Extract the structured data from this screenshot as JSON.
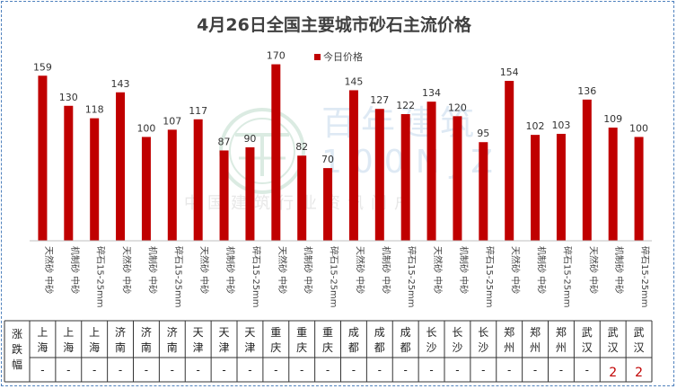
{
  "chart_data": {
    "type": "bar",
    "title": "4月26日全国主要城市砂石主流价格",
    "legend": {
      "entries": [
        "今日价格"
      ],
      "position": "top-right"
    },
    "series": [
      {
        "name": "今日价格",
        "color": "#c00000",
        "values": [
          159,
          130,
          118,
          143,
          100,
          107,
          117,
          87,
          90,
          170,
          82,
          70,
          145,
          127,
          122,
          134,
          120,
          95,
          154,
          102,
          103,
          136,
          109,
          100
        ]
      }
    ],
    "categories": [
      "天然砂 中砂",
      "机制砂 中砂",
      "碎石15-25mm",
      "天然砂 中砂",
      "机制砂 中砂",
      "碎石15-25mm",
      "天然砂 中砂",
      "机制砂 中砂",
      "碎石15-25mm",
      "天然砂 中砂",
      "机制砂 中砂",
      "碎石15-25mm",
      "天然砂 中砂",
      "机制砂 中砂",
      "碎石15-25mm",
      "天然砂 中砂",
      "机制砂 中砂",
      "碎石15-25mm",
      "天然砂 中砂",
      "机制砂 中砂",
      "碎石15-25mm",
      "天然砂 中砂",
      "机制砂 中砂",
      "碎石15-25mm"
    ],
    "ylim": [
      0,
      180
    ],
    "grid": false
  },
  "table": {
    "row_label": "涨跌幅",
    "cities": [
      "上海",
      "上海",
      "上海",
      "济南",
      "济南",
      "济南",
      "天津",
      "天津",
      "天津",
      "重庆",
      "重庆",
      "重庆",
      "成都",
      "成都",
      "成都",
      "长沙",
      "长沙",
      "长沙",
      "郑州",
      "郑州",
      "郑州",
      "武汉",
      "武汉",
      "武汉"
    ],
    "changes": [
      "-",
      "-",
      "-",
      "-",
      "-",
      "-",
      "-",
      "-",
      "-",
      "-",
      "-",
      "-",
      "-",
      "-",
      "-",
      "-",
      "-",
      "-",
      "-",
      "-",
      "-",
      "-",
      "2",
      "2"
    ]
  },
  "watermark": {
    "brand": "百年建筑",
    "sub": "中国建筑行业资讯门户",
    "url": "100NJZ"
  }
}
